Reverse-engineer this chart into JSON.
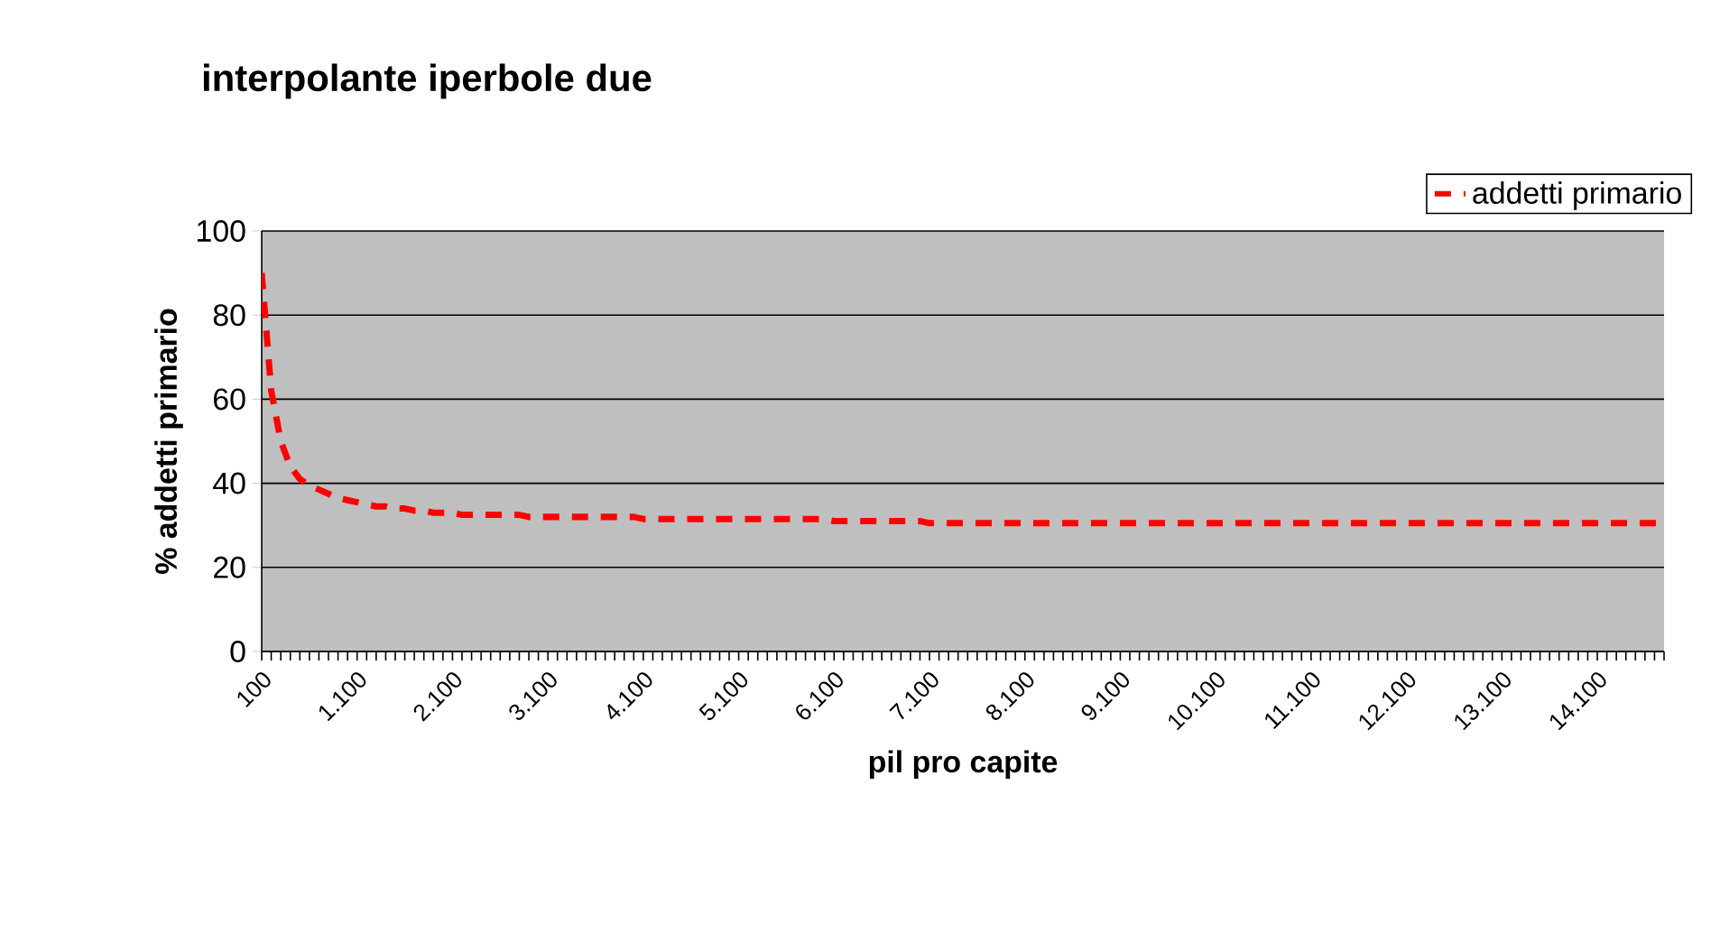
{
  "chart_data": {
    "type": "line",
    "title": "interpolante iperbole due",
    "xlabel": "pil pro capite",
    "ylabel": "% addetti primario",
    "categories": [
      "100",
      null,
      null,
      null,
      null,
      null,
      null,
      null,
      null,
      null,
      "1.100",
      null,
      null,
      null,
      null,
      null,
      null,
      null,
      null,
      null,
      "2.100",
      null,
      null,
      null,
      null,
      null,
      null,
      null,
      null,
      null,
      "3.100",
      null,
      null,
      null,
      null,
      null,
      null,
      null,
      null,
      null,
      "4.100",
      null,
      null,
      null,
      null,
      null,
      null,
      null,
      null,
      null,
      "5.100",
      null,
      null,
      null,
      null,
      null,
      null,
      null,
      null,
      null,
      "6.100",
      null,
      null,
      null,
      null,
      null,
      null,
      null,
      null,
      null,
      "7.100",
      null,
      null,
      null,
      null,
      null,
      null,
      null,
      null,
      null,
      "8.100",
      null,
      null,
      null,
      null,
      null,
      null,
      null,
      null,
      null,
      "9.100",
      null,
      null,
      null,
      null,
      null,
      null,
      null,
      null,
      null,
      "10.100",
      null,
      null,
      null,
      null,
      null,
      null,
      null,
      null,
      null,
      "11.100",
      null,
      null,
      null,
      null,
      null,
      null,
      null,
      null,
      null,
      "12.100",
      null,
      null,
      null,
      null,
      null,
      null,
      null,
      null,
      null,
      "13.100",
      null,
      null,
      null,
      null,
      null,
      null,
      null,
      null,
      null,
      "14.100",
      null,
      null,
      null,
      null,
      null,
      null,
      null
    ],
    "series": [
      {
        "name": "addetti primario",
        "color": "#ff0000",
        "values": [
          90,
          62,
          50,
          44,
          41,
          39.5,
          38.5,
          37.5,
          36.5,
          36,
          35.5,
          35,
          34.5,
          34.5,
          34,
          34,
          33.5,
          33.5,
          33,
          33,
          33,
          32.5,
          32.5,
          32.5,
          32.5,
          32.5,
          32.5,
          32.5,
          32,
          32,
          32,
          32,
          32,
          32,
          32,
          32,
          32,
          32,
          32,
          32,
          31.5,
          31.5,
          31.5,
          31.5,
          31.5,
          31.5,
          31.5,
          31.5,
          31.5,
          31.5,
          31.5,
          31.5,
          31.5,
          31.5,
          31.5,
          31.5,
          31.5,
          31.5,
          31.5,
          31.5,
          31,
          31,
          31,
          31,
          31,
          31,
          31,
          31,
          31,
          31,
          30.5,
          30.5,
          30.5,
          30.5,
          30.5,
          30.5,
          30.5,
          30.5,
          30.5,
          30.5,
          30.5,
          30.5,
          30.5,
          30.5,
          30.5,
          30.5,
          30.5,
          30.5,
          30.5,
          30.5,
          30.5,
          30.5,
          30.5,
          30.5,
          30.5,
          30.5,
          30.5,
          30.5,
          30.5,
          30.5,
          30.5,
          30.5,
          30.5,
          30.5,
          30.5,
          30.5,
          30.5,
          30.5,
          30.5,
          30.5,
          30.5,
          30.5,
          30.5,
          30.5,
          30.5,
          30.5,
          30.5,
          30.5,
          30.5,
          30.5,
          30.5,
          30.5,
          30.5,
          30.5,
          30.5,
          30.5,
          30.5,
          30.5,
          30.5,
          30.5,
          30.5,
          30.5,
          30.5,
          30.5,
          30.5,
          30.5,
          30.5,
          30.5,
          30.5,
          30.5,
          30.5,
          30.5,
          30.5,
          30.5,
          30.5,
          30.5,
          30.5,
          30.5
        ]
      }
    ],
    "ylim": [
      0,
      100
    ],
    "yticks": [
      0,
      20,
      40,
      60,
      80,
      100
    ],
    "grid": "y",
    "legend": "top right",
    "marker": "none",
    "line_style": "dashed"
  }
}
